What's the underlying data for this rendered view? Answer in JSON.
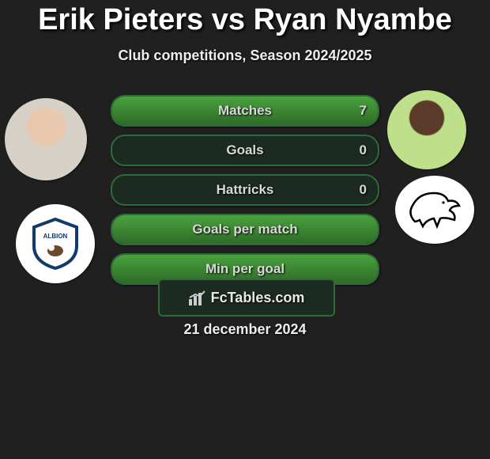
{
  "title": "Erik Pieters vs Ryan Nyambe",
  "subtitle": "Club competitions, Season 2024/2025",
  "date": "21 december 2024",
  "brand": "FcTables.com",
  "colors": {
    "bar_border": "#2e6b39",
    "bar_bg": "#1b2b21",
    "bar_fill_top": "#4aa23e",
    "bar_fill_bot": "#2e6b28",
    "page_bg": "#202020",
    "text": "#eeeeee"
  },
  "players": {
    "left": {
      "name": "Erik Pieters",
      "team": "West Bromwich Albion"
    },
    "right": {
      "name": "Ryan Nyambe",
      "team": "Derby County"
    }
  },
  "stats": [
    {
      "label": "Matches",
      "value": "7",
      "fill_pct": 100
    },
    {
      "label": "Goals",
      "value": "0",
      "fill_pct": 0
    },
    {
      "label": "Hattricks",
      "value": "0",
      "fill_pct": 0
    },
    {
      "label": "Goals per match",
      "value": "",
      "fill_pct": 100
    },
    {
      "label": "Min per goal",
      "value": "",
      "fill_pct": 100
    }
  ]
}
